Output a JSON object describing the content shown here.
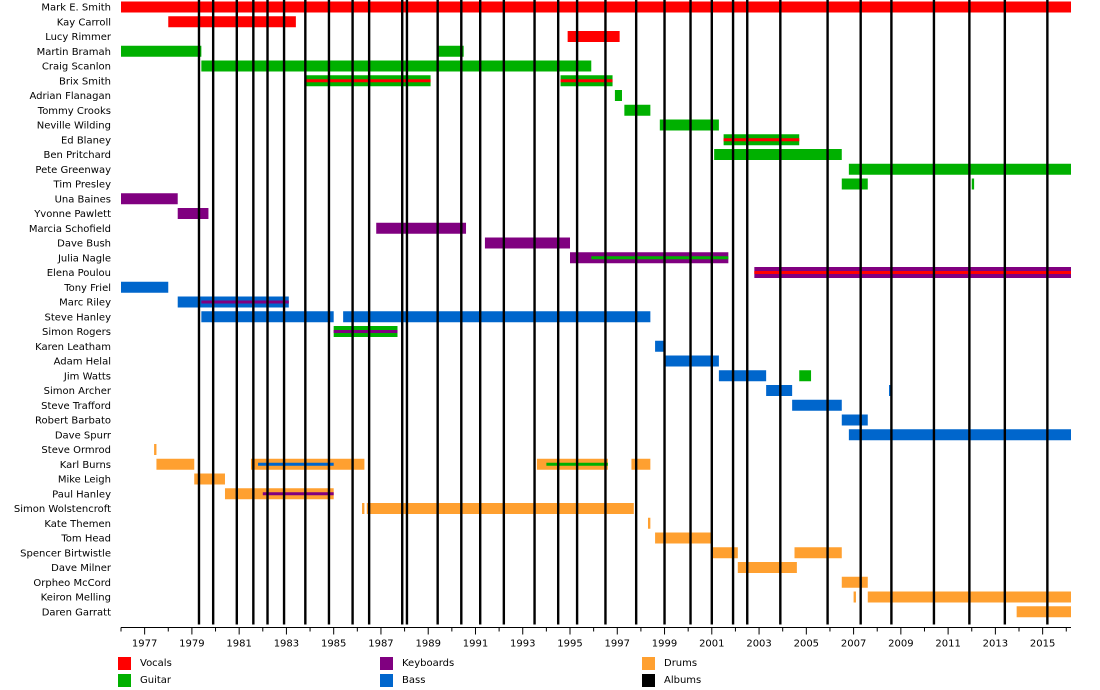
{
  "chart_data": {
    "type": "timeline",
    "title": "",
    "x_range": [
      1976.0,
      2016.2
    ],
    "ticks": [
      1977,
      1979,
      1981,
      1983,
      1985,
      1987,
      1989,
      1991,
      1993,
      1995,
      1997,
      1999,
      2001,
      2003,
      2005,
      2007,
      2009,
      2011,
      2013,
      2015
    ],
    "colors": {
      "vocals": "#ff0000",
      "guitar": "#00b000",
      "keyboards": "#800080",
      "bass": "#0066cc",
      "drums": "#ffa030",
      "albums": "#000000"
    },
    "legend": [
      {
        "key": "vocals",
        "label": "Vocals"
      },
      {
        "key": "guitar",
        "label": "Guitar"
      },
      {
        "key": "keyboards",
        "label": "Keyboards"
      },
      {
        "key": "bass",
        "label": "Bass"
      },
      {
        "key": "drums",
        "label": "Drums"
      },
      {
        "key": "albums",
        "label": "Albums"
      }
    ],
    "albums": [
      1979.3,
      1979.9,
      1980.9,
      1981.6,
      1982.2,
      1982.9,
      1983.8,
      1984.8,
      1985.8,
      1986.5,
      1987.9,
      1988.1,
      1989.4,
      1990.4,
      1991.2,
      1992.2,
      1993.5,
      1994.5,
      1995.3,
      1996.5,
      1997.8,
      1999.0,
      2000.1,
      2001.0,
      2001.9,
      2002.5,
      2003.9,
      2005.9,
      2007.3,
      2008.6,
      2010.4,
      2011.9,
      2013.4,
      2015.2
    ],
    "members": [
      {
        "name": "Mark E. Smith",
        "bars": [
          {
            "role": "vocals",
            "start": 1976.0,
            "end": 2016.2
          }
        ]
      },
      {
        "name": "Kay Carroll",
        "bars": [
          {
            "role": "vocals",
            "start": 1978.0,
            "end": 1983.4
          }
        ]
      },
      {
        "name": "Lucy Rimmer",
        "bars": [
          {
            "role": "vocals",
            "start": 1994.9,
            "end": 1997.1
          }
        ]
      },
      {
        "name": "Martin Bramah",
        "bars": [
          {
            "role": "guitar",
            "start": 1976.0,
            "end": 1979.4
          },
          {
            "role": "guitar",
            "start": 1989.4,
            "end": 1990.5
          }
        ]
      },
      {
        "name": "Craig Scanlon",
        "bars": [
          {
            "role": "guitar",
            "start": 1979.4,
            "end": 1995.9
          }
        ]
      },
      {
        "name": "Brix Smith",
        "bars": [
          {
            "role": "guitar",
            "start": 1983.8,
            "end": 1989.1,
            "inner": "vocals"
          },
          {
            "role": "guitar",
            "start": 1994.6,
            "end": 1996.8,
            "inner": "vocals"
          }
        ]
      },
      {
        "name": "Adrian Flanagan",
        "bars": [
          {
            "role": "guitar",
            "start": 1996.9,
            "end": 1997.2
          }
        ]
      },
      {
        "name": "Tommy Crooks",
        "bars": [
          {
            "role": "guitar",
            "start": 1997.3,
            "end": 1998.4
          }
        ]
      },
      {
        "name": "Neville Wilding",
        "bars": [
          {
            "role": "guitar",
            "start": 1998.8,
            "end": 2001.3
          }
        ]
      },
      {
        "name": "Ed Blaney",
        "bars": [
          {
            "role": "guitar",
            "start": 2001.5,
            "end": 2004.7,
            "inner": "vocals"
          }
        ]
      },
      {
        "name": "Ben Pritchard",
        "bars": [
          {
            "role": "guitar",
            "start": 2001.1,
            "end": 2006.5
          }
        ]
      },
      {
        "name": "Pete Greenway",
        "bars": [
          {
            "role": "guitar",
            "start": 2006.8,
            "end": 2016.2
          }
        ]
      },
      {
        "name": "Tim Presley",
        "bars": [
          {
            "role": "guitar",
            "start": 2006.5,
            "end": 2007.6
          },
          {
            "role": "guitar",
            "start": 2012.0,
            "end": 2012.1
          }
        ]
      },
      {
        "name": "Una Baines",
        "bars": [
          {
            "role": "keyboards",
            "start": 1976.0,
            "end": 1978.4
          }
        ]
      },
      {
        "name": "Yvonne Pawlett",
        "bars": [
          {
            "role": "keyboards",
            "start": 1978.4,
            "end": 1979.7
          }
        ]
      },
      {
        "name": "Marcia Schofield",
        "bars": [
          {
            "role": "keyboards",
            "start": 1986.8,
            "end": 1990.6
          }
        ]
      },
      {
        "name": "Dave Bush",
        "bars": [
          {
            "role": "keyboards",
            "start": 1991.4,
            "end": 1995.0
          }
        ]
      },
      {
        "name": "Julia Nagle",
        "bars": [
          {
            "role": "keyboards",
            "start": 1995.0,
            "end": 2001.7,
            "inner": "guitar",
            "inner_start": 1995.9
          }
        ]
      },
      {
        "name": "Elena Poulou",
        "bars": [
          {
            "role": "keyboards",
            "start": 2002.8,
            "end": 2016.2,
            "inner": "vocals"
          }
        ]
      },
      {
        "name": "Tony Friel",
        "bars": [
          {
            "role": "bass",
            "start": 1976.0,
            "end": 1978.0
          }
        ]
      },
      {
        "name": "Marc Riley",
        "bars": [
          {
            "role": "bass",
            "start": 1978.4,
            "end": 1983.1,
            "inner": "keyboards",
            "inner_start": 1979.4
          }
        ]
      },
      {
        "name": "Steve Hanley",
        "bars": [
          {
            "role": "bass",
            "start": 1979.4,
            "end": 1985.0
          },
          {
            "role": "bass",
            "start": 1985.4,
            "end": 1998.4
          }
        ]
      },
      {
        "name": "Simon Rogers",
        "bars": [
          {
            "role": "guitar",
            "start": 1985.0,
            "end": 1987.7,
            "inner": "keyboards"
          }
        ]
      },
      {
        "name": "Karen Leatham",
        "bars": [
          {
            "role": "bass",
            "start": 1998.6,
            "end": 1999.0
          }
        ]
      },
      {
        "name": "Adam Helal",
        "bars": [
          {
            "role": "bass",
            "start": 1999.0,
            "end": 2001.3
          }
        ]
      },
      {
        "name": "Jim Watts",
        "bars": [
          {
            "role": "bass",
            "start": 2001.3,
            "end": 2003.3
          },
          {
            "role": "guitar",
            "start": 2004.7,
            "end": 2005.2
          }
        ]
      },
      {
        "name": "Simon Archer",
        "bars": [
          {
            "role": "bass",
            "start": 2003.3,
            "end": 2004.4
          },
          {
            "role": "bass",
            "start": 2008.5,
            "end": 2008.6
          }
        ]
      },
      {
        "name": "Steve Trafford",
        "bars": [
          {
            "role": "bass",
            "start": 2004.4,
            "end": 2006.5
          }
        ]
      },
      {
        "name": "Robert Barbato",
        "bars": [
          {
            "role": "bass",
            "start": 2006.5,
            "end": 2007.6
          }
        ]
      },
      {
        "name": "Dave Spurr",
        "bars": [
          {
            "role": "bass",
            "start": 2006.8,
            "end": 2016.2
          }
        ]
      },
      {
        "name": "Steve Ormrod",
        "bars": [
          {
            "role": "drums",
            "start": 1977.4,
            "end": 1977.5
          }
        ]
      },
      {
        "name": "Karl Burns",
        "bars": [
          {
            "role": "drums",
            "start": 1977.5,
            "end": 1979.1
          },
          {
            "role": "drums",
            "start": 1981.5,
            "end": 1986.3,
            "inner": "bass",
            "inner_start": 1981.8,
            "inner_end": 1985.0
          },
          {
            "role": "drums",
            "start": 1993.6,
            "end": 1996.6,
            "inner": "guitar",
            "inner_start": 1994.0
          },
          {
            "role": "drums",
            "start": 1997.6,
            "end": 1998.4
          }
        ]
      },
      {
        "name": "Mike Leigh",
        "bars": [
          {
            "role": "drums",
            "start": 1979.1,
            "end": 1980.4
          }
        ]
      },
      {
        "name": "Paul Hanley",
        "bars": [
          {
            "role": "drums",
            "start": 1980.4,
            "end": 1985.0,
            "inner": "keyboards",
            "inner_start": 1982.0
          }
        ]
      },
      {
        "name": "Simon Wolstencroft",
        "bars": [
          {
            "role": "drums",
            "start": 1986.2,
            "end": 1986.3
          },
          {
            "role": "drums",
            "start": 1986.4,
            "end": 1997.7
          }
        ]
      },
      {
        "name": "Kate Themen",
        "bars": [
          {
            "role": "drums",
            "start": 1998.3,
            "end": 1998.4
          }
        ]
      },
      {
        "name": "Tom Head",
        "bars": [
          {
            "role": "drums",
            "start": 1998.6,
            "end": 2001.0
          }
        ]
      },
      {
        "name": "Spencer Birtwistle",
        "bars": [
          {
            "role": "drums",
            "start": 2001.0,
            "end": 2002.1
          },
          {
            "role": "drums",
            "start": 2004.5,
            "end": 2006.5
          }
        ]
      },
      {
        "name": "Dave Milner",
        "bars": [
          {
            "role": "drums",
            "start": 2002.1,
            "end": 2004.6
          }
        ]
      },
      {
        "name": "Orpheo McCord",
        "bars": [
          {
            "role": "drums",
            "start": 2006.5,
            "end": 2007.6
          }
        ]
      },
      {
        "name": "Keiron Melling",
        "bars": [
          {
            "role": "drums",
            "start": 2007.0,
            "end": 2007.1
          },
          {
            "role": "drums",
            "start": 2007.6,
            "end": 2016.2
          }
        ]
      },
      {
        "name": "Daren Garratt",
        "bars": [
          {
            "role": "drums",
            "start": 2013.9,
            "end": 2016.2
          }
        ]
      }
    ]
  }
}
